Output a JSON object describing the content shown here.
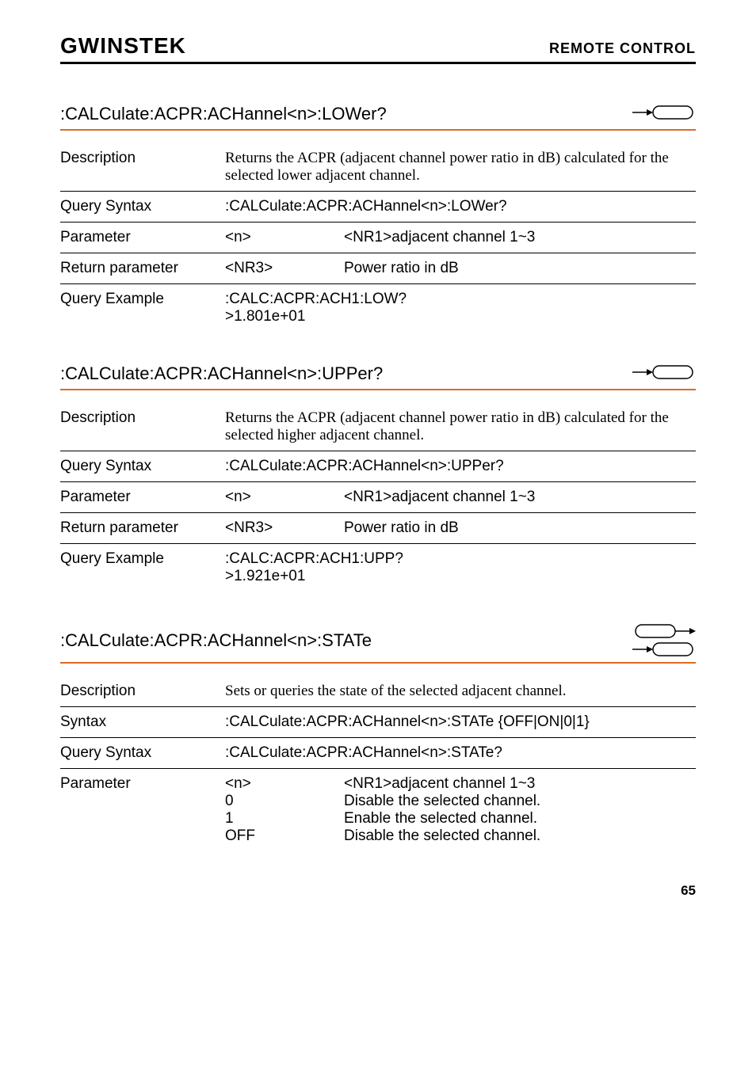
{
  "header": {
    "logo": "GWINSTEK",
    "section": "REMOTE CONTROL"
  },
  "sections": [
    {
      "title": ":CALCulate:ACPR:ACHannel<n>:LOWer?",
      "hasSet": false,
      "rows": [
        {
          "label": "Description",
          "type": "text",
          "value": "Returns the ACPR (adjacent channel power ratio in dB) calculated for the selected lower adjacent channel."
        },
        {
          "label": "Query Syntax",
          "type": "mono",
          "value": ":CALCulate:ACPR:ACHannel<n>:LOWer?"
        },
        {
          "label": "Parameter",
          "type": "two-col",
          "col1": "<n>",
          "col2": "<NR1>adjacent channel 1~3"
        },
        {
          "label": "Return parameter",
          "type": "two-col",
          "col1": "<NR3>",
          "col2": "Power ratio in dB"
        },
        {
          "label": "Query Example",
          "type": "multi",
          "lines": [
            ":CALC:ACPR:ACH1:LOW?",
            ">1.801e+01"
          ]
        }
      ]
    },
    {
      "title": ":CALCulate:ACPR:ACHannel<n>:UPPer?",
      "hasSet": false,
      "rows": [
        {
          "label": "Description",
          "type": "text",
          "value": "Returns the ACPR (adjacent channel power ratio in dB) calculated for the selected higher adjacent channel."
        },
        {
          "label": "Query Syntax",
          "type": "mono",
          "value": ":CALCulate:ACPR:ACHannel<n>:UPPer?"
        },
        {
          "label": "Parameter",
          "type": "two-col",
          "col1": "<n>",
          "col2": "<NR1>adjacent channel 1~3"
        },
        {
          "label": "Return parameter",
          "type": "two-col",
          "col1": "<NR3>",
          "col2": "Power ratio in dB"
        },
        {
          "label": "Query Example",
          "type": "multi",
          "lines": [
            ":CALC:ACPR:ACH1:UPP?",
            ">1.921e+01"
          ]
        }
      ]
    },
    {
      "title": ":CALCulate:ACPR:ACHannel<n>:STATe",
      "hasSet": true,
      "rows": [
        {
          "label": "Description",
          "type": "text",
          "value": "Sets or queries the state of the selected adjacent channel."
        },
        {
          "label": "Syntax",
          "type": "mono",
          "value": ":CALCulate:ACPR:ACHannel<n>:STATe {OFF|ON|0|1}"
        },
        {
          "label": "Query Syntax",
          "type": "mono",
          "value": ":CALCulate:ACPR:ACHannel<n>:STATe?"
        },
        {
          "label": "Parameter",
          "type": "param-list",
          "items": [
            {
              "p": "<n>",
              "d": "<NR1>adjacent channel 1~3"
            },
            {
              "p": "0",
              "d": "Disable the selected channel."
            },
            {
              "p": "1",
              "d": "Enable the selected channel."
            },
            {
              "p": "OFF",
              "d": "Disable the selected channel."
            }
          ]
        }
      ]
    }
  ],
  "pageNumber": "65",
  "colors": {
    "accent": "#db6c27",
    "text": "#000000"
  }
}
